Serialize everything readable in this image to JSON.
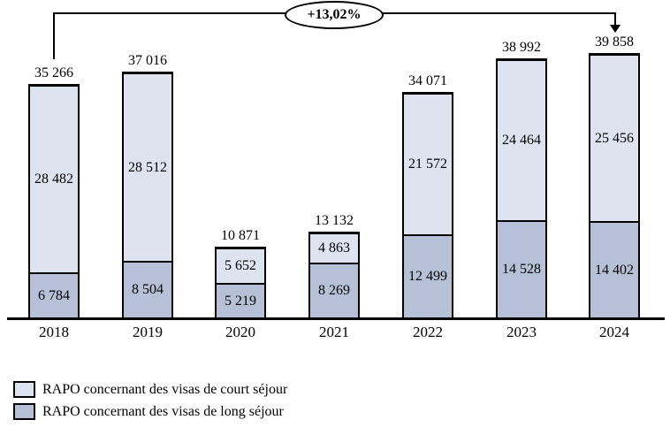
{
  "annotation": {
    "label": "+13,02%"
  },
  "colors": {
    "court_sejour_fill": "#dde3ef",
    "long_sejour_fill": "#b6c1d8",
    "line": "#000000",
    "background": "#ffffff"
  },
  "legend": [
    {
      "label": "RAPO concernant des visas de court séjour",
      "color": "#dde3ef"
    },
    {
      "label": "RAPO concernant des visas de long séjour",
      "color": "#b6c1d8"
    }
  ],
  "bars": [
    {
      "year": "2018",
      "total": "35 266",
      "court": "28 482",
      "long": "6 784"
    },
    {
      "year": "2019",
      "total": "37 016",
      "court": "28 512",
      "long": "8 504"
    },
    {
      "year": "2020",
      "total": "10 871",
      "court": "5 652",
      "long": "5 219"
    },
    {
      "year": "2021",
      "total": "13 132",
      "court": "4 863",
      "long": "8 269"
    },
    {
      "year": "2022",
      "total": "34 071",
      "court": "21 572",
      "long": "12 499"
    },
    {
      "year": "2023",
      "total": "38 992",
      "court": "24 464",
      "long": "14 528"
    },
    {
      "year": "2024",
      "total": "39 858",
      "court": "25 456",
      "long": "14 402"
    }
  ],
  "chart_data": {
    "type": "bar",
    "stacked": true,
    "categories": [
      "2018",
      "2019",
      "2020",
      "2021",
      "2022",
      "2023",
      "2024"
    ],
    "series": [
      {
        "name": "RAPO concernant des visas de court séjour",
        "values": [
          28482,
          28512,
          5652,
          4863,
          21572,
          24464,
          25456
        ]
      },
      {
        "name": "RAPO concernant des visas de long séjour",
        "values": [
          6784,
          8504,
          5219,
          8269,
          12499,
          14528,
          14402
        ]
      }
    ],
    "totals": [
      35266,
      37016,
      10871,
      13132,
      34071,
      38992,
      39858
    ],
    "annotation": "+13,02%",
    "title": "",
    "xlabel": "",
    "ylabel": "",
    "ylim": [
      0,
      42000
    ],
    "grid": false,
    "legend_position": "bottom-left",
    "data_labels": "totals above bars and segment values inside segments"
  }
}
